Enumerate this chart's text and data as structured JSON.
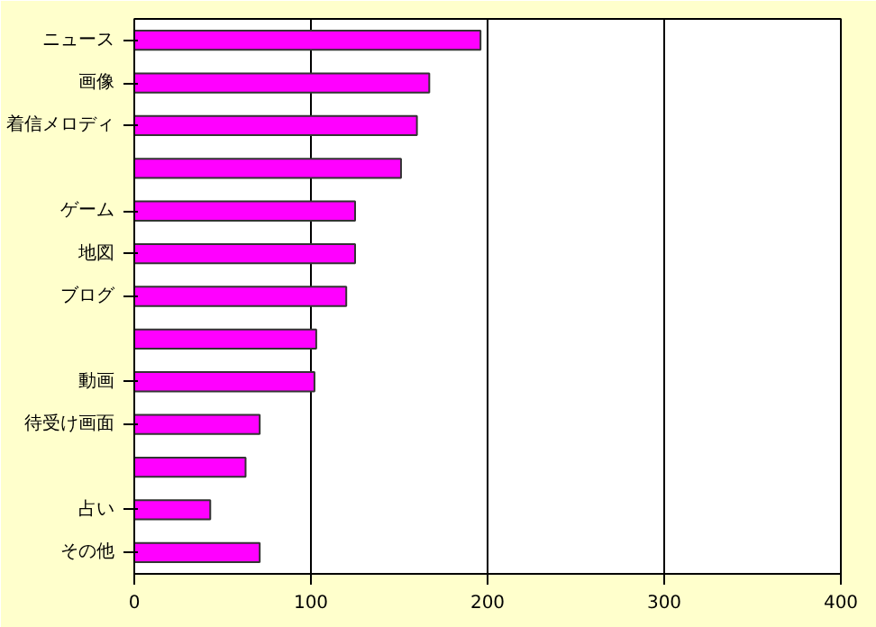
{
  "chart_data": {
    "type": "bar",
    "orientation": "horizontal",
    "categories": [
      "ニュース",
      "画像",
      "着信メロディ",
      null,
      "ゲーム",
      "地図",
      "ブログ",
      null,
      "動画",
      "待受け画面",
      null,
      "占い",
      "その他"
    ],
    "values": [
      196,
      167,
      160,
      151,
      125,
      125,
      120,
      103,
      102,
      71,
      63,
      43,
      71
    ],
    "color": "#ff00ff",
    "xlim": [
      0,
      400
    ],
    "xticks": [
      0,
      100,
      200,
      300,
      400
    ],
    "grid": "x"
  }
}
